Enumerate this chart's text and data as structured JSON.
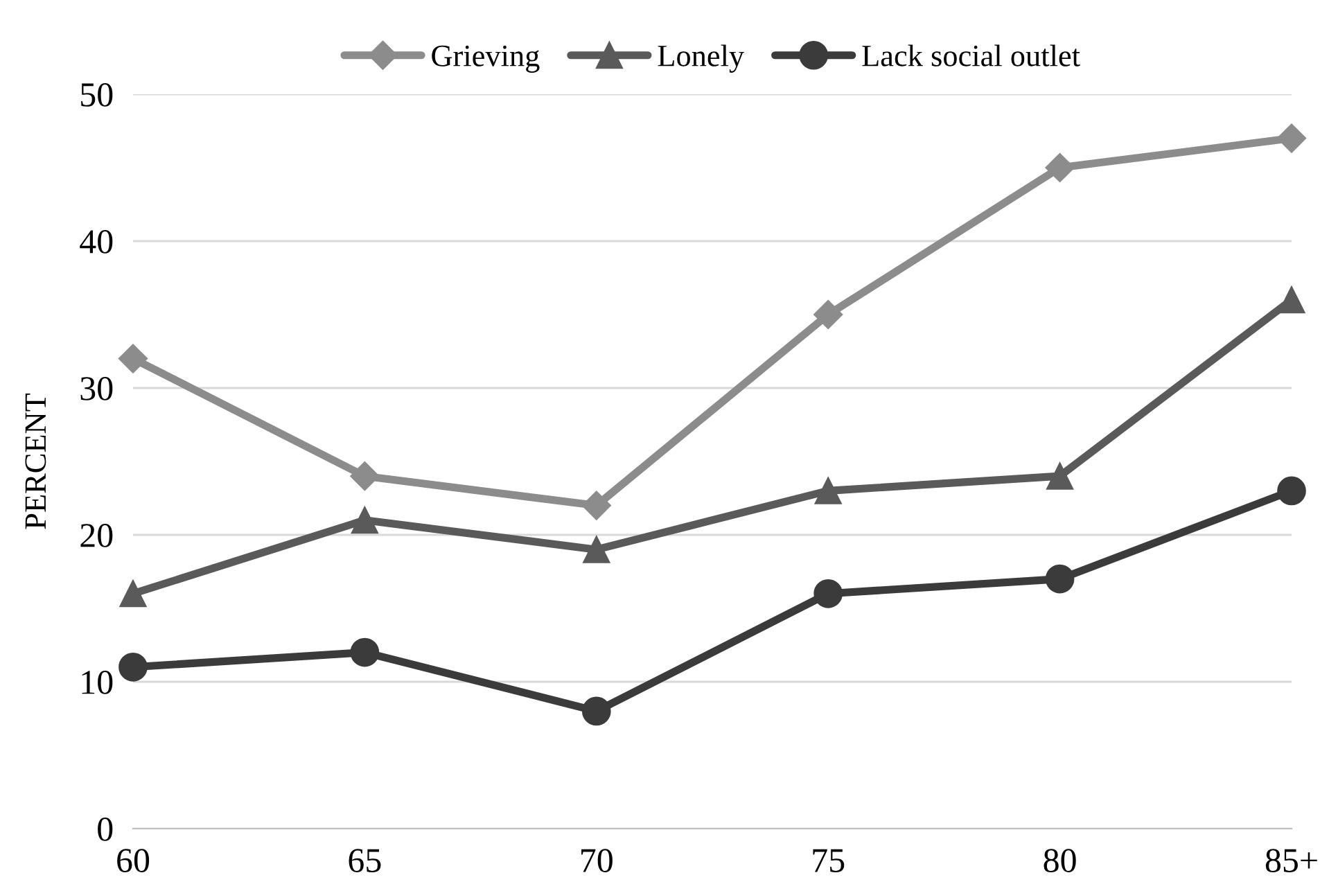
{
  "chart_data": {
    "type": "line",
    "ylabel": "PERCENT",
    "categories": [
      "60",
      "65",
      "70",
      "75",
      "80",
      "85+"
    ],
    "series": [
      {
        "name": "Grieving",
        "color": "#8c8c8c",
        "marker": "diamond",
        "values": [
          32,
          24,
          22,
          35,
          45,
          47
        ]
      },
      {
        "name": "Lonely",
        "color": "#5a5a5a",
        "marker": "triangle",
        "values": [
          16,
          21,
          19,
          23,
          24,
          36
        ]
      },
      {
        "name": "Lack social outlet",
        "color": "#3b3b3b",
        "marker": "circle",
        "values": [
          11,
          12,
          8,
          16,
          17,
          23
        ]
      }
    ],
    "ylim": [
      0,
      50
    ],
    "yticks": [
      0,
      10,
      20,
      30,
      40,
      50
    ],
    "grid": "y",
    "legend": "top",
    "line_style": "solid"
  }
}
